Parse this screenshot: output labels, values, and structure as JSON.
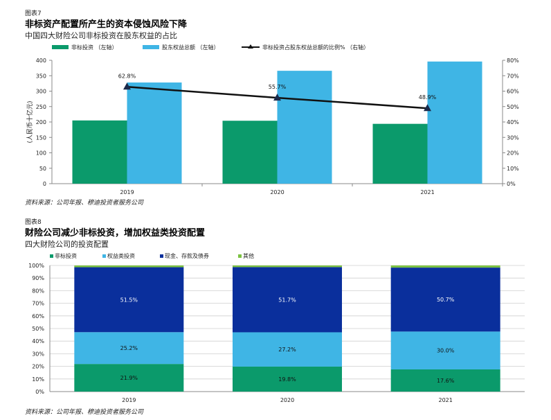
{
  "fig7": {
    "fig_no": "图表7",
    "title": "非标资产配置所产生的资本侵蚀风险下降",
    "subtitle": "中国四大财险公司非标投资在股东权益的占比",
    "source": "资料来源：公司年报、穆迪投资者服务公司"
  },
  "fig8": {
    "fig_no": "图表8",
    "title": "财险公司减少非标投资，增加权益类投资配置",
    "subtitle": "四大财险公司的投资配置",
    "source": "资料来源：公司年报、穆迪投资者服务公司"
  },
  "chart_data": [
    {
      "type": "bar",
      "categories": [
        "2019",
        "2020",
        "2021"
      ],
      "ylabel": "(人民币十亿元)",
      "ylim": [
        0,
        400
      ],
      "yticks": [
        "0",
        "50",
        "100",
        "150",
        "200",
        "250",
        "300",
        "350",
        "400"
      ],
      "y2lim": [
        0,
        0.8
      ],
      "y2ticks": [
        "0%",
        "10%",
        "20%",
        "30%",
        "40%",
        "50%",
        "60%",
        "70%",
        "80%"
      ],
      "series": [
        {
          "name": "非标投资 （左轴）",
          "values": [
            205,
            204,
            194
          ],
          "color": "#0b9a6b"
        },
        {
          "name": "股东权益总额 （左轴）",
          "values": [
            328,
            366,
            396
          ],
          "color": "#3fb5e5"
        },
        {
          "name": "非标投资占股东权益总额的比例% （右轴）",
          "values": [
            0.628,
            0.557,
            0.489
          ],
          "labels": [
            "62.8%",
            "55.7%",
            "48.9%"
          ],
          "color": "#111111",
          "kind": "line"
        }
      ],
      "grid": false,
      "legend": "top"
    },
    {
      "type": "bar",
      "stacked": true,
      "categories": [
        "2019",
        "2020",
        "2021"
      ],
      "ylim": [
        0,
        1
      ],
      "yticks": [
        "0%",
        "10%",
        "20%",
        "30%",
        "40%",
        "50%",
        "60%",
        "70%",
        "80%",
        "90%",
        "100%"
      ],
      "series": [
        {
          "name": "非标投资",
          "values": [
            0.219,
            0.198,
            0.176
          ],
          "labels": [
            "21.9%",
            "19.8%",
            "17.6%"
          ],
          "color": "#0b9a6b"
        },
        {
          "name": "权益类投资",
          "values": [
            0.252,
            0.272,
            0.3
          ],
          "labels": [
            "25.2%",
            "27.2%",
            "30.0%"
          ],
          "color": "#3fb5e5"
        },
        {
          "name": "现金、存款及债券",
          "values": [
            0.515,
            0.517,
            0.507
          ],
          "labels": [
            "51.5%",
            "51.7%",
            "50.7%"
          ],
          "color": "#0a2f9c"
        },
        {
          "name": "其他",
          "values": [
            0.014,
            0.013,
            0.017
          ],
          "labels": [
            "",
            "",
            ""
          ],
          "color": "#7cc242"
        }
      ],
      "grid": true,
      "legend": "top"
    }
  ]
}
